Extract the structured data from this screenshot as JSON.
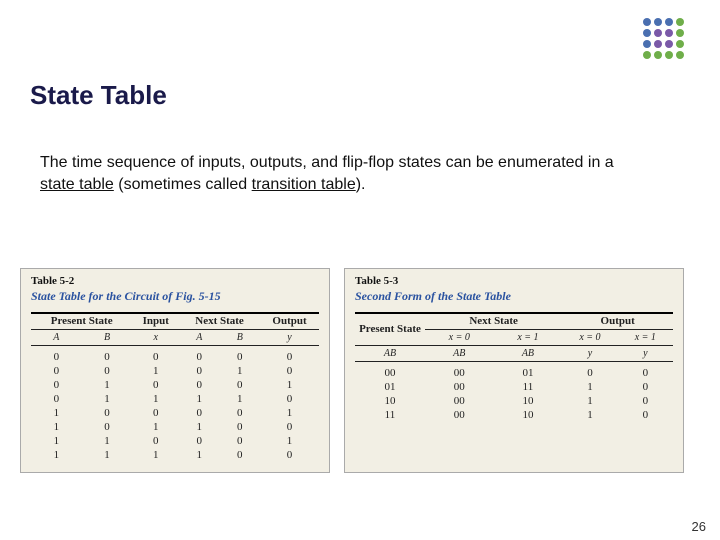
{
  "logo": {
    "dots": [
      "#4a6fb0",
      "#4a6fb0",
      "#4a6fb0",
      "#6fae4a",
      "#4a6fb0",
      "#7a59a8",
      "#7a59a8",
      "#6fae4a",
      "#4a6fb0",
      "#7a59a8",
      "#7a59a8",
      "#6fae4a",
      "#6fae4a",
      "#6fae4a",
      "#6fae4a",
      "#6fae4a"
    ]
  },
  "title": "State Table",
  "paragraph": {
    "pre": "The time sequence of inputs, outputs, and flip-flop states can be enumerated in a ",
    "u1": "state table",
    "mid": " (sometimes called ",
    "u2": "transition table",
    "post": ")."
  },
  "table_left": {
    "number": "Table 5-2",
    "title": "State Table for the Circuit of Fig. 5-15",
    "group_headers": [
      "Present State",
      "Input",
      "Next State",
      "Output"
    ],
    "sub_headers": [
      "A",
      "B",
      "x",
      "A",
      "B",
      "y"
    ],
    "rows": [
      [
        "0",
        "0",
        "0",
        "0",
        "0",
        "0"
      ],
      [
        "0",
        "0",
        "1",
        "0",
        "1",
        "0"
      ],
      [
        "0",
        "1",
        "0",
        "0",
        "0",
        "1"
      ],
      [
        "0",
        "1",
        "1",
        "1",
        "1",
        "0"
      ],
      [
        "1",
        "0",
        "0",
        "0",
        "0",
        "1"
      ],
      [
        "1",
        "0",
        "1",
        "1",
        "0",
        "0"
      ],
      [
        "1",
        "1",
        "0",
        "0",
        "0",
        "1"
      ],
      [
        "1",
        "1",
        "1",
        "1",
        "0",
        "0"
      ]
    ]
  },
  "table_right": {
    "number": "Table 5-3",
    "title": "Second Form of the State Table",
    "group_headers": [
      "Present State",
      "Next State",
      "Output"
    ],
    "cond_headers": [
      "x = 0",
      "x = 1",
      "x = 0",
      "x = 1"
    ],
    "sub_headers": [
      "AB",
      "AB",
      "AB",
      "y",
      "y"
    ],
    "rows": [
      [
        "00",
        "00",
        "01",
        "0",
        "0"
      ],
      [
        "01",
        "00",
        "11",
        "1",
        "0"
      ],
      [
        "10",
        "00",
        "10",
        "1",
        "0"
      ],
      [
        "11",
        "00",
        "10",
        "1",
        "0"
      ]
    ]
  },
  "page_number": "26",
  "colors": {
    "title": "#1a1a4a",
    "card_bg": "#f2efe4",
    "table_title": "#2a52a0"
  }
}
